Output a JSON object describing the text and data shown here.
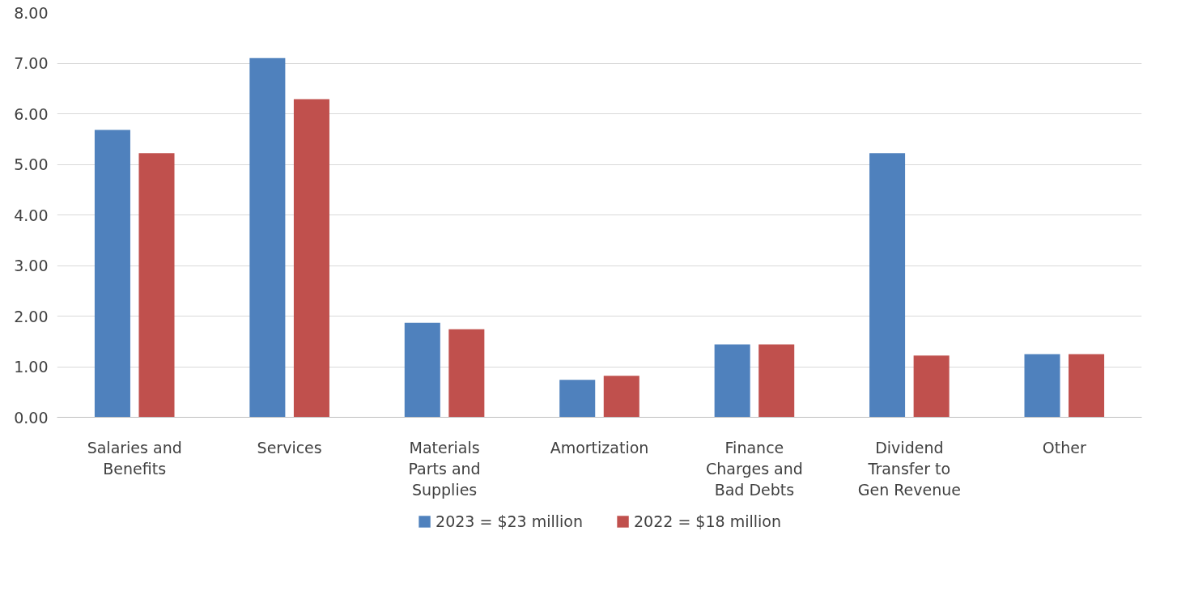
{
  "chart_data": {
    "type": "bar",
    "categories": [
      "Salaries and Benefits",
      "Services",
      "Materials Parts and Supplies",
      "Amortization",
      "Finance Charges and Bad Debts",
      "Dividend Transfer to Gen Revenue",
      "Other"
    ],
    "series": [
      {
        "name": "2023 = $23 million",
        "color": "#4f81bd",
        "values": [
          5.68,
          7.1,
          1.87,
          0.74,
          1.44,
          5.22,
          1.25
        ]
      },
      {
        "name": "2022 = $18 million",
        "color": "#c0504d",
        "values": [
          5.22,
          6.29,
          1.74,
          0.82,
          1.44,
          1.22,
          1.25
        ]
      }
    ],
    "ylim": [
      0,
      8
    ],
    "yticks": [
      {
        "value": 0,
        "label": "0.00"
      },
      {
        "value": 1,
        "label": "1.00"
      },
      {
        "value": 2,
        "label": "2.00"
      },
      {
        "value": 3,
        "label": "3.00"
      },
      {
        "value": 4,
        "label": "4.00"
      },
      {
        "value": 5,
        "label": "5.00"
      },
      {
        "value": 6,
        "label": "6.00"
      },
      {
        "value": 7,
        "label": "7.00"
      },
      {
        "value": 8,
        "label": "8.00"
      }
    ],
    "grid": "y",
    "legend": "bottom"
  }
}
